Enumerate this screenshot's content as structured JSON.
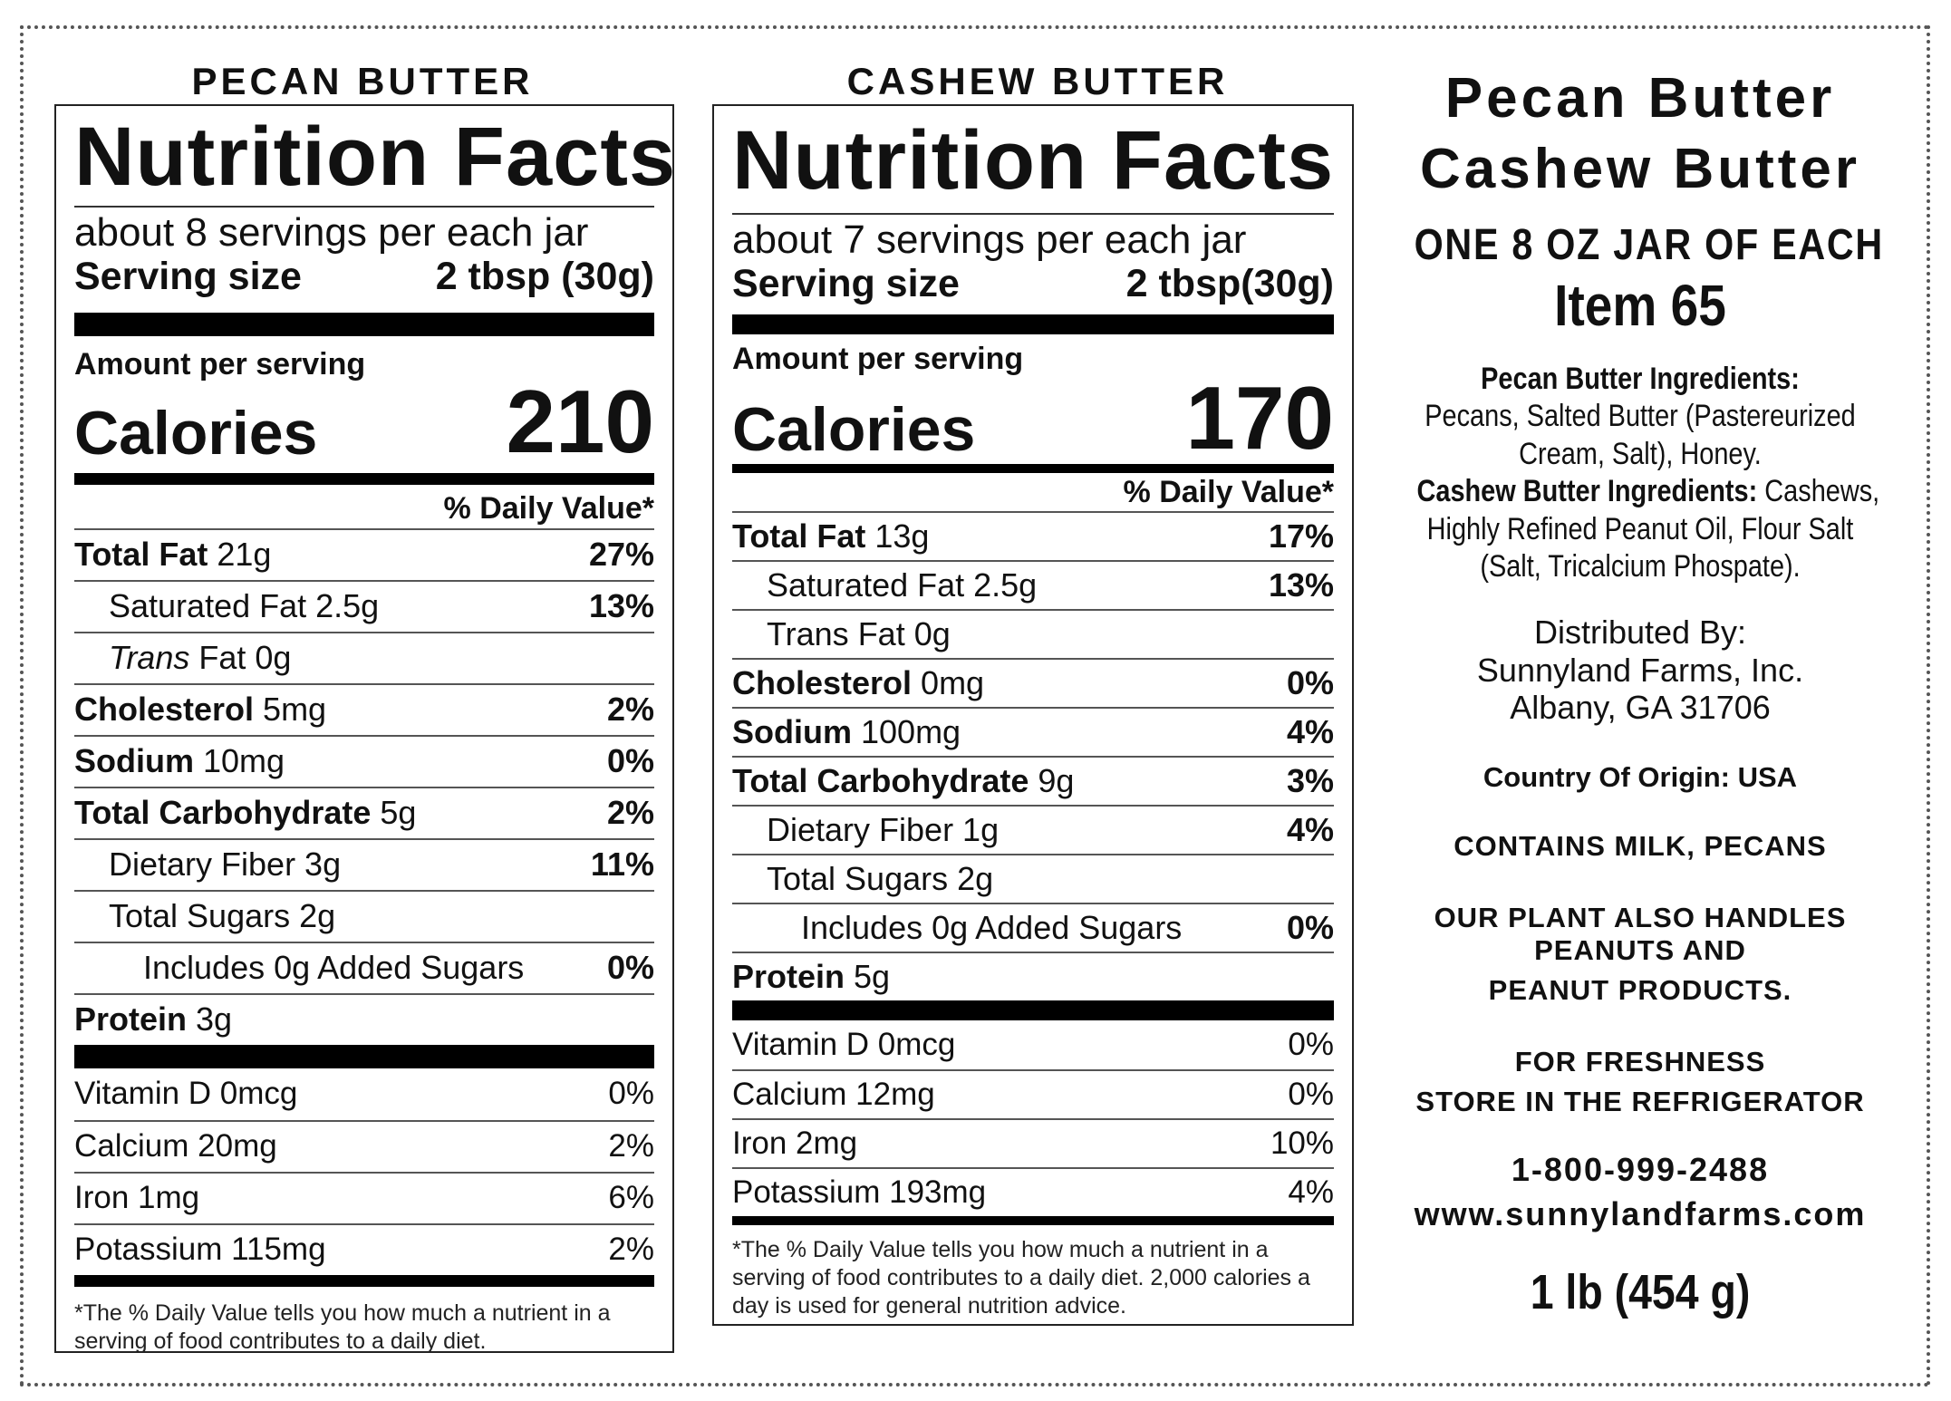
{
  "pecan": {
    "heading": "PECAN BUTTER",
    "title": "Nutrition Facts",
    "servings": "about 8 servings per each jar",
    "serving_size_label": "Serving size",
    "serving_size_value": "2 tbsp (30g)",
    "amount_label": "Amount per serving",
    "calories_label": "Calories",
    "calories_value": "210",
    "dv_label": "% Daily Value*",
    "rows": [
      {
        "bold": "Total Fat",
        "text": " 21g",
        "dv": "27%"
      },
      {
        "bold": "",
        "text": "Saturated Fat 2.5g",
        "dv": "13%"
      },
      {
        "italic": "Trans",
        "text": " Fat 0g",
        "dv": ""
      },
      {
        "bold": "Cholesterol",
        "text": " 5mg",
        "dv": "2%"
      },
      {
        "bold": "Sodium",
        "text": " 10mg",
        "dv": "0%"
      },
      {
        "bold": "Total Carbohydrate",
        "text": " 5g",
        "dv": "2%"
      },
      {
        "bold": "",
        "text": "Dietary Fiber 3g",
        "dv": "11%"
      },
      {
        "bold": "",
        "text": "Total Sugars 2g",
        "dv": ""
      },
      {
        "bold": "",
        "text": "Includes 0g Added Sugars",
        "dv": "0%"
      },
      {
        "bold": "Protein",
        "text": " 3g",
        "dv": ""
      }
    ],
    "vitamins": [
      {
        "label": "Vitamin D 0mcg",
        "dv": "0%"
      },
      {
        "label": "Calcium 20mg",
        "dv": "2%"
      },
      {
        "label": "Iron 1mg",
        "dv": "6%"
      },
      {
        "label": "Potassium 115mg",
        "dv": "2%"
      }
    ],
    "footnote_1": "*The % Daily Value tells you how much a nutrient in a",
    "footnote_2": "serving of food contributes to a daily diet."
  },
  "cashew": {
    "heading": "CASHEW BUTTER",
    "title": "Nutrition Facts",
    "servings": "about 7 servings per each jar",
    "serving_size_label": "Serving size",
    "serving_size_value": "2 tbsp(30g)",
    "amount_label": "Amount per serving",
    "calories_label": "Calories",
    "calories_value": "170",
    "dv_label": "% Daily Value*",
    "rows": [
      {
        "bold": "Total Fat",
        "text": " 13g",
        "dv": "17%"
      },
      {
        "bold": "",
        "text": "Saturated Fat 2.5g",
        "dv": "13%"
      },
      {
        "bold": "",
        "text": "Trans Fat 0g",
        "dv": ""
      },
      {
        "bold": "Cholesterol",
        "text": " 0mg",
        "dv": "0%"
      },
      {
        "bold": "Sodium",
        "text": " 100mg",
        "dv": "4%"
      },
      {
        "bold": "Total Carbohydrate",
        "text": " 9g",
        "dv": "3%"
      },
      {
        "bold": "",
        "text": "Dietary Fiber 1g",
        "dv": "4%"
      },
      {
        "bold": "",
        "text": "Total Sugars 2g",
        "dv": ""
      },
      {
        "bold": "",
        "text": "Includes 0g Added Sugars",
        "dv": "0%"
      },
      {
        "bold": "Protein",
        "text": " 5g",
        "dv": ""
      }
    ],
    "vitamins": [
      {
        "label": "Vitamin D 0mcg",
        "dv": "0%"
      },
      {
        "label": "Calcium 12mg",
        "dv": "0%"
      },
      {
        "label": "Iron 2mg",
        "dv": "10%"
      },
      {
        "label": "Potassium 193mg",
        "dv": "4%"
      }
    ],
    "footnote_1": "*The % Daily Value tells you how much a nutrient in a",
    "footnote_2": "serving of food contributes to a daily diet. 2,000 calories a",
    "footnote_3": "day is used for general nutrition advice."
  },
  "info": {
    "product_1": "Pecan Butter",
    "product_2": "Cashew Butter",
    "jar_note": "ONE 8 OZ JAR OF EACH",
    "item": "Item 65",
    "pecan_ing_label": "Pecan Butter Ingredients:",
    "pecan_ing_1": "Pecans, Salted Butter (Pastereurized",
    "pecan_ing_2": "Cream, Salt), Honey.",
    "cashew_ing_label": "Cashew Butter Ingredients:",
    "cashew_ing_1": " Cashews,",
    "cashew_ing_2": "Highly Refined Peanut Oil, Flour Salt",
    "cashew_ing_3": "(Salt, Tricalcium Phospate).",
    "distributed_by": "Distributed By:",
    "company": "Sunnyland Farms, Inc.",
    "address": "Albany, GA 31706",
    "origin": "Country Of Origin: USA",
    "allergens": "CONTAINS MILK, PECANS",
    "plant_1": "OUR PLANT ALSO HANDLES",
    "plant_2": "PEANUTS AND",
    "plant_3": "PEANUT PRODUCTS.",
    "fresh_1": "FOR FRESHNESS",
    "fresh_2": "STORE IN THE REFRIGERATOR",
    "phone": "1-800-999-2488",
    "website": "www.sunnylandfarms.com",
    "net_weight": "1 lb (454 g)"
  }
}
